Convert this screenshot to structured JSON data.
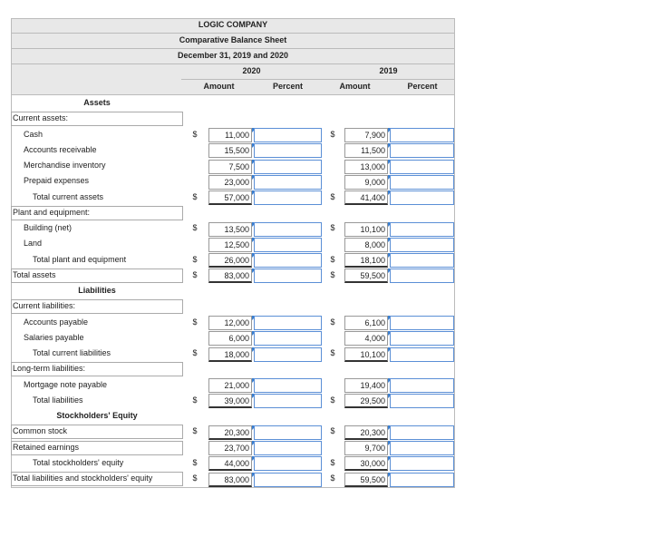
{
  "header": {
    "company": "LOGIC COMPANY",
    "statement": "Comparative Balance Sheet",
    "date": "December 31, 2019 and 2020",
    "years": [
      "2020",
      "2019"
    ],
    "columns": [
      "Amount",
      "Percent",
      "Amount",
      "Percent"
    ]
  },
  "rows": [
    {
      "label": "Assets"
    },
    {
      "label": "Current assets:"
    },
    {
      "label": "Cash",
      "values": [
        {
          "sign": "$",
          "amount": "11,000"
        },
        {
          "sign": "$",
          "amount": "7,900"
        }
      ]
    },
    {
      "label": "Accounts receivable",
      "values": [
        {
          "amount": "15,500"
        },
        {
          "amount": "11,500"
        }
      ]
    },
    {
      "label": "Merchandise inventory",
      "values": [
        {
          "amount": "7,500"
        },
        {
          "amount": "13,000"
        }
      ]
    },
    {
      "label": "Prepaid expenses",
      "values": [
        {
          "amount": "23,000"
        },
        {
          "amount": "9,000"
        }
      ]
    },
    {
      "label": "Total current assets",
      "values": [
        {
          "sign": "$",
          "amount": "57,000"
        },
        {
          "sign": "$",
          "amount": "41,400"
        }
      ]
    },
    {
      "label": "Plant and equipment:"
    },
    {
      "label": "Building (net)",
      "values": [
        {
          "sign": "$",
          "amount": "13,500"
        },
        {
          "sign": "$",
          "amount": "10,100"
        }
      ]
    },
    {
      "label": "Land",
      "values": [
        {
          "amount": "12,500"
        },
        {
          "amount": "8,000"
        }
      ]
    },
    {
      "label": "Total plant and equipment",
      "values": [
        {
          "sign": "$",
          "amount": "26,000"
        },
        {
          "sign": "$",
          "amount": "18,100"
        }
      ]
    },
    {
      "label": "Total assets",
      "values": [
        {
          "sign": "$",
          "amount": "83,000"
        },
        {
          "sign": "$",
          "amount": "59,500"
        }
      ]
    },
    {
      "label": "Liabilities"
    },
    {
      "label": "Current liabilities:"
    },
    {
      "label": "Accounts payable",
      "values": [
        {
          "sign": "$",
          "amount": "12,000"
        },
        {
          "sign": "$",
          "amount": "6,100"
        }
      ]
    },
    {
      "label": "Salaries payable",
      "values": [
        {
          "amount": "6,000"
        },
        {
          "amount": "4,000"
        }
      ]
    },
    {
      "label": "Total current liabilities",
      "values": [
        {
          "sign": "$",
          "amount": "18,000"
        },
        {
          "sign": "$",
          "amount": "10,100"
        }
      ]
    },
    {
      "label": "Long-term liabilities:"
    },
    {
      "label": "Mortgage note payable",
      "values": [
        {
          "amount": "21,000"
        },
        {
          "amount": "19,400"
        }
      ]
    },
    {
      "label": "Total liabilities",
      "values": [
        {
          "sign": "$",
          "amount": "39,000"
        },
        {
          "sign": "$",
          "amount": "29,500"
        }
      ]
    },
    {
      "label": "Stockholders' Equity"
    },
    {
      "label": "Common stock",
      "values": [
        {
          "sign": "$",
          "amount": "20,300"
        },
        {
          "sign": "$",
          "amount": "20,300"
        }
      ]
    },
    {
      "label": "Retained earnings",
      "values": [
        {
          "amount": "23,700"
        },
        {
          "amount": "9,700"
        }
      ]
    },
    {
      "label": "Total stockholders' equity",
      "values": [
        {
          "sign": "$",
          "amount": "44,000"
        },
        {
          "sign": "$",
          "amount": "30,000"
        }
      ]
    },
    {
      "label": "Total liabilities and stockholders' equity",
      "values": [
        {
          "sign": "$",
          "amount": "83,000"
        },
        {
          "sign": "$",
          "amount": "59,500"
        }
      ]
    }
  ]
}
